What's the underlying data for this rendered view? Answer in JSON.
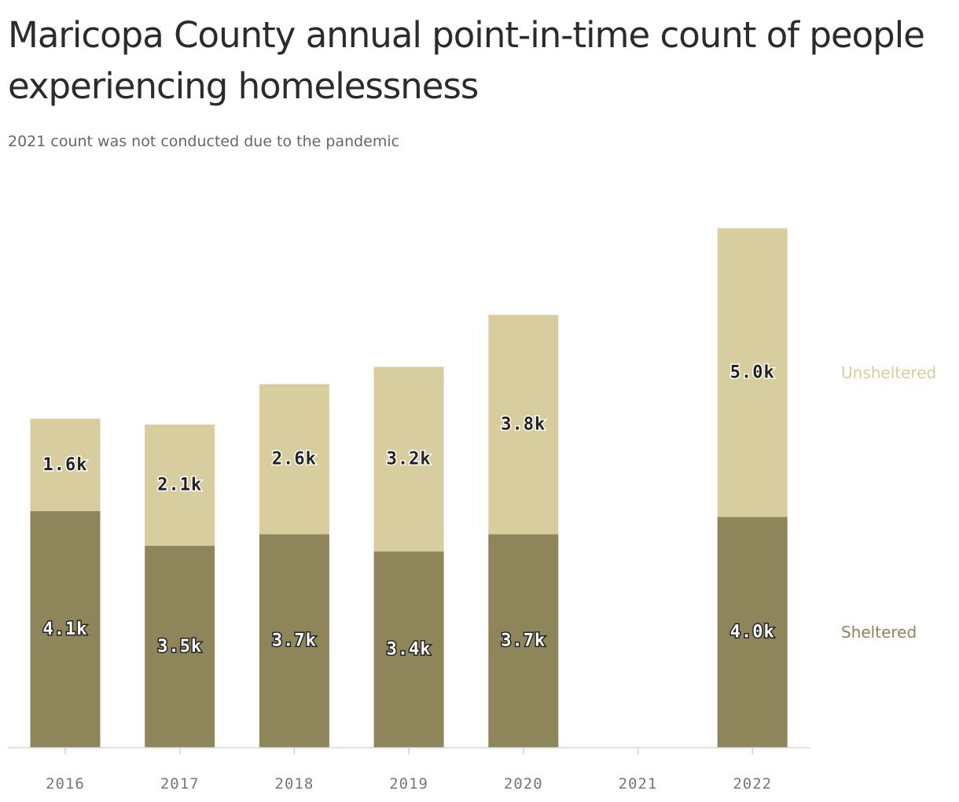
{
  "chart_data": {
    "type": "bar",
    "stacked": true,
    "title": "Maricopa County annual point-in-time count of people experiencing homelessness",
    "subtitle": "2021 count was not conducted due to the pandemic",
    "categories": [
      "2016",
      "2017",
      "2018",
      "2019",
      "2020",
      "2021",
      "2022"
    ],
    "series": [
      {
        "name": "Sheltered",
        "color": "#8f855b",
        "values": [
          4100,
          3500,
          3700,
          3400,
          3700,
          null,
          4000
        ],
        "labels": [
          "4.1k",
          "3.5k",
          "3.7k",
          "3.4k",
          "3.7k",
          "",
          "4.0k"
        ]
      },
      {
        "name": "Unsheltered",
        "color": "#d8cd9e",
        "values": [
          1600,
          2100,
          2600,
          3200,
          3800,
          null,
          5000
        ],
        "labels": [
          "1.6k",
          "2.1k",
          "2.6k",
          "3.2k",
          "3.8k",
          "",
          "5.0k"
        ]
      }
    ],
    "ylim": [
      0,
      9000
    ],
    "grid": false,
    "legend": "right, inline labels"
  }
}
